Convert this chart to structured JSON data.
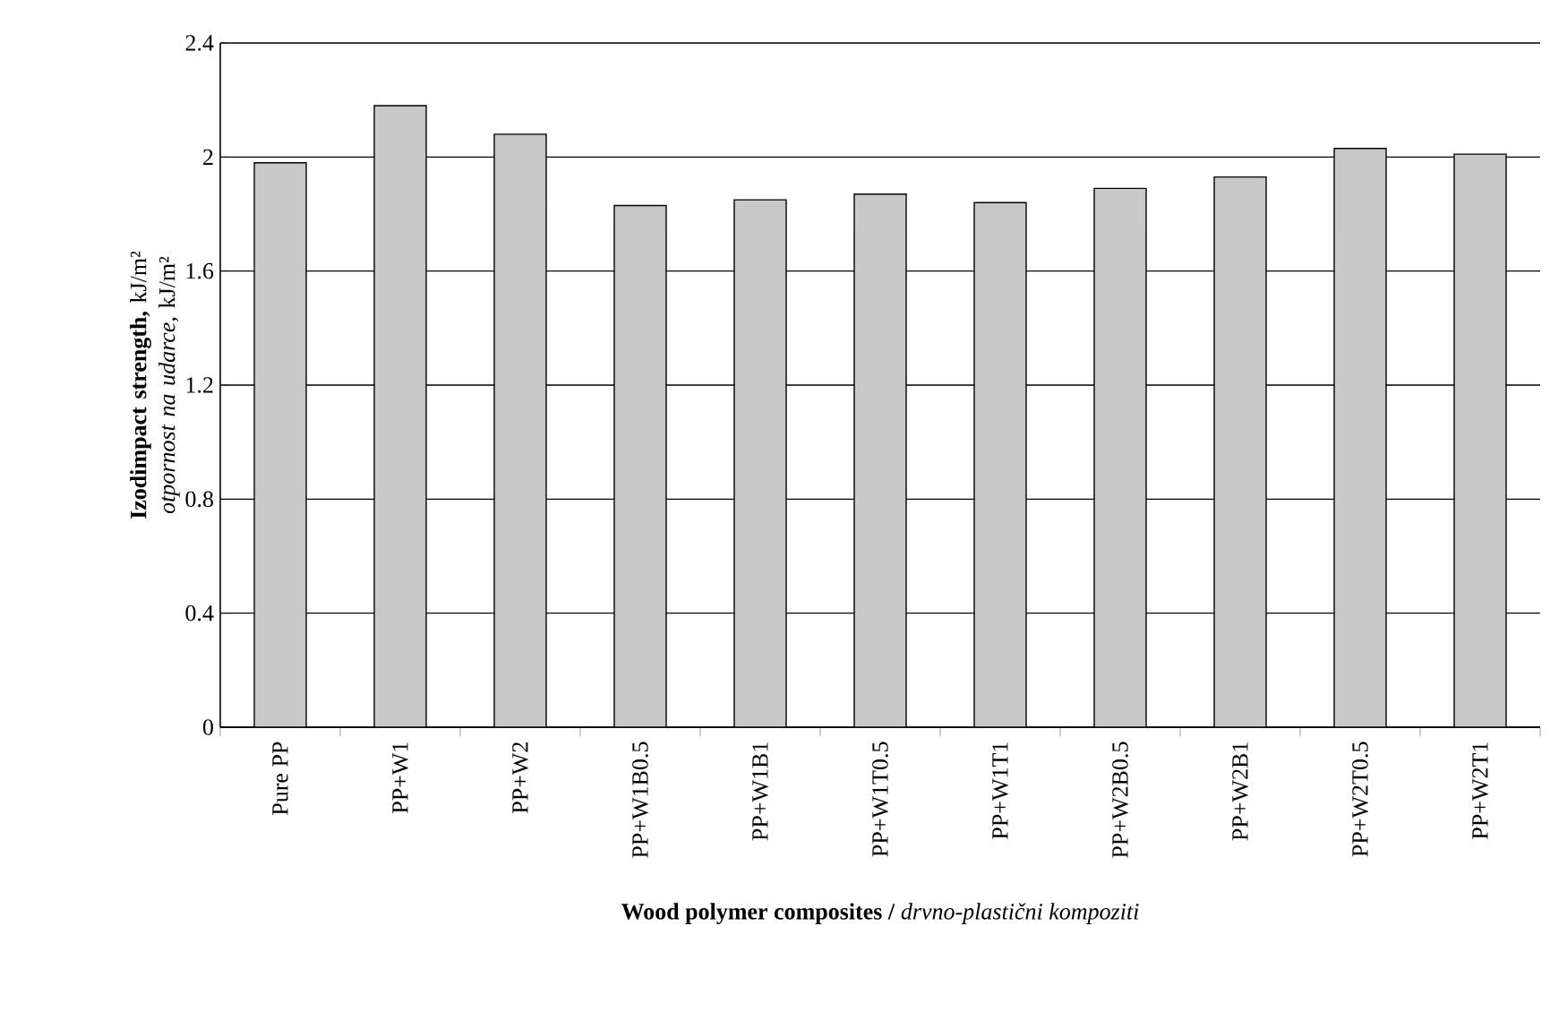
{
  "chart_data": {
    "type": "bar",
    "xlabel": "**Wood polymer composites /** *drvno-plastični kompoziti*",
    "ylabel": "**Izodimpact strength,** kJ/m² *otpornost na udarce,* kJ/m²",
    "categories": [
      "Pure PP",
      "PP+W1",
      "PP+W2",
      "PP+W1B0.5",
      "PP+W1B1",
      "PP+W1T0.5",
      "PP+W1T1",
      "PP+W2B0.5",
      "PP+W2B1",
      "PP+W2T0.5",
      "PP+W2T1"
    ],
    "values": [
      1.98,
      2.18,
      2.08,
      1.83,
      1.85,
      1.87,
      1.84,
      1.89,
      1.93,
      2.03,
      2.01
    ],
    "color": "#c8c8c8",
    "ylim": [
      0,
      2.4
    ],
    "yticks": [
      0,
      0.4,
      0.8,
      1.2,
      1.6,
      2,
      2.4
    ],
    "grid": "y"
  }
}
